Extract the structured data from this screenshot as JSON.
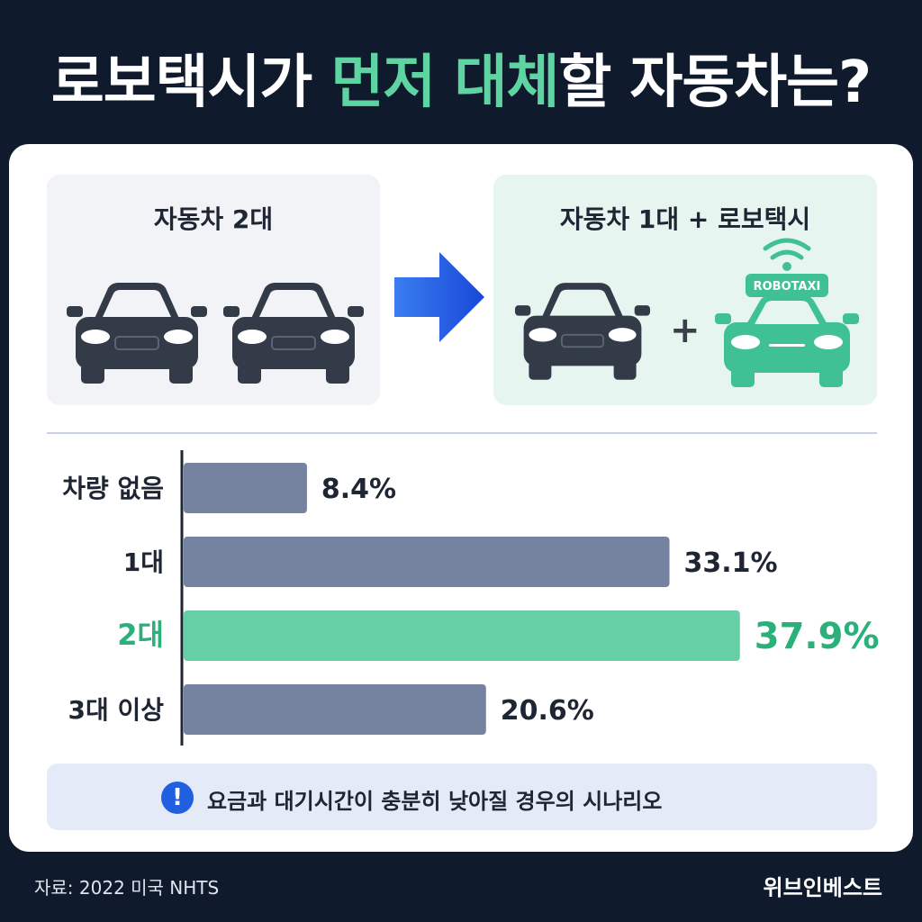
{
  "title": {
    "part1": "로보택시가 ",
    "highlight": "먼저 대체",
    "part2": "할 자동차는?"
  },
  "comparison": {
    "left_title": "자동차 2대",
    "right_title": "자동차 1대 + 로보택시",
    "robotaxi_label": "ROBOTAXI",
    "plus": "+"
  },
  "colors": {
    "bar_default": "#7583a0",
    "bar_highlight": "#66cfa5",
    "highlight_text": "#2bb07a",
    "car_dark": "#333b48",
    "robotaxi_green": "#3fc195",
    "arrow_blue": "#1f5fe0"
  },
  "chart_data": {
    "type": "bar",
    "orientation": "horizontal",
    "categories": [
      "차량 없음",
      "1대",
      "2대",
      "3대 이상"
    ],
    "values": [
      8.4,
      33.1,
      37.9,
      20.6
    ],
    "value_labels": [
      "8.4%",
      "33.1%",
      "37.9%",
      "20.6%"
    ],
    "highlight_index": 2,
    "xlim": [
      0,
      40
    ]
  },
  "note": {
    "icon": "exclamation-icon",
    "text": "요금과 대기시간이 충분히 낮아질 경우의 시나리오"
  },
  "footer": {
    "source": "자료: 2022 미국 NHTS",
    "brand": "위브인베스트"
  }
}
